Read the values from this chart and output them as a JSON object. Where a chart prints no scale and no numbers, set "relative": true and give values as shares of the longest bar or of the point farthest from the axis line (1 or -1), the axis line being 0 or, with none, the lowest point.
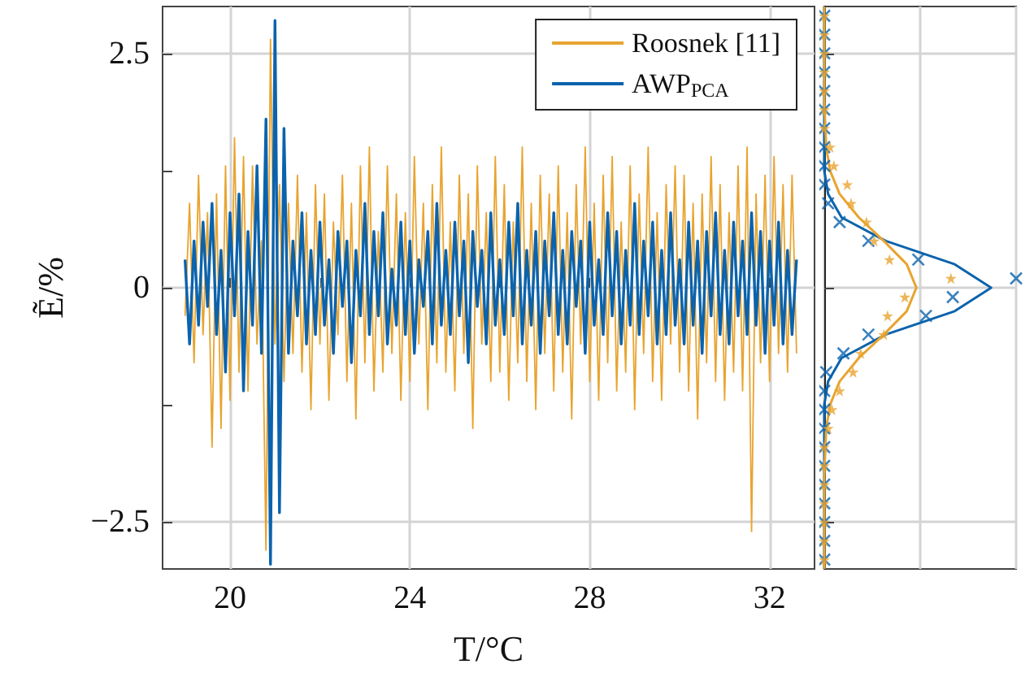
{
  "chart_data": [
    {
      "type": "line",
      "xlabel": "T/°C",
      "ylabel": "Ẽ/%",
      "xlim": [
        18.5,
        33
      ],
      "ylim": [
        -3,
        3
      ],
      "xticks": [
        20,
        {
          "value": 22,
          "label": null
        },
        24,
        {
          "value": 26,
          "label": null
        },
        28,
        {
          "value": 30,
          "label": null
        },
        32
      ],
      "yticks": [
        {
          "value": -2.5,
          "label": "−2.5"
        },
        {
          "value": -1.25,
          "label": null
        },
        0,
        {
          "value": 1.25,
          "label": null
        },
        2.5
      ],
      "grid": true,
      "legend": "top right",
      "x": [
        19.0,
        19.1,
        19.2,
        19.3,
        19.4,
        19.5,
        19.6,
        19.7,
        19.8,
        19.9,
        20.0,
        20.1,
        20.2,
        20.3,
        20.4,
        20.5,
        20.6,
        20.7,
        20.8,
        20.9,
        21.0,
        21.1,
        21.2,
        21.3,
        21.4,
        21.5,
        21.6,
        21.7,
        21.8,
        21.9,
        22.0,
        22.1,
        22.2,
        22.3,
        22.4,
        22.5,
        22.6,
        22.7,
        22.8,
        22.9,
        23.0,
        23.1,
        23.2,
        23.3,
        23.4,
        23.5,
        23.6,
        23.7,
        23.8,
        23.9,
        24.0,
        24.1,
        24.2,
        24.3,
        24.4,
        24.5,
        24.6,
        24.7,
        24.8,
        24.9,
        25.0,
        25.1,
        25.2,
        25.3,
        25.4,
        25.5,
        25.6,
        25.7,
        25.8,
        25.9,
        26.0,
        26.1,
        26.2,
        26.3,
        26.4,
        26.5,
        26.6,
        26.7,
        26.8,
        26.9,
        27.0,
        27.1,
        27.2,
        27.3,
        27.4,
        27.5,
        27.6,
        27.7,
        27.8,
        27.9,
        28.0,
        28.1,
        28.2,
        28.3,
        28.4,
        28.5,
        28.6,
        28.7,
        28.8,
        28.9,
        29.0,
        29.1,
        29.2,
        29.3,
        29.4,
        29.5,
        29.6,
        29.7,
        29.8,
        29.9,
        30.0,
        30.1,
        30.2,
        30.3,
        30.4,
        30.5,
        30.6,
        30.7,
        30.8,
        30.9,
        31.0,
        31.1,
        31.2,
        31.3,
        31.4,
        31.5,
        31.6,
        31.7,
        31.8,
        31.9,
        32.0,
        32.1,
        32.2,
        32.3,
        32.4,
        32.5,
        32.6
      ],
      "series": [
        {
          "name": "Roosnek [11]",
          "color": "#e8a430",
          "values": [
            -0.3,
            0.9,
            -0.8,
            1.2,
            -0.5,
            0.8,
            -1.7,
            1.0,
            -1.5,
            1.3,
            -1.2,
            1.6,
            -0.9,
            1.4,
            -1.1,
            1.3,
            -0.6,
            0.5,
            -2.8,
            2.65,
            -0.6,
            1.1,
            -1.0,
            0.9,
            -0.7,
            1.2,
            -0.9,
            0.8,
            -1.3,
            1.1,
            -0.6,
            1.0,
            -1.2,
            0.7,
            -0.5,
            1.2,
            -1.0,
            0.9,
            -1.4,
            1.3,
            -0.8,
            1.5,
            -1.1,
            0.6,
            -0.9,
            1.3,
            -0.7,
            1.0,
            -1.2,
            0.8,
            -1.0,
            1.4,
            -0.6,
            0.9,
            -1.3,
            1.1,
            -0.8,
            1.5,
            -0.9,
            0.7,
            -1.1,
            1.2,
            -0.7,
            1.0,
            -1.5,
            1.3,
            -0.6,
            0.8,
            -1.0,
            1.4,
            -0.9,
            1.1,
            -1.2,
            0.7,
            -0.8,
            1.5,
            -1.0,
            0.9,
            -1.3,
            1.2,
            -0.7,
            1.0,
            -1.1,
            1.3,
            -0.9,
            0.8,
            -1.4,
            1.1,
            -0.6,
            1.5,
            -1.0,
            0.9,
            -1.2,
            1.2,
            -0.8,
            1.4,
            -1.1,
            0.7,
            -0.9,
            1.3,
            -1.3,
            1.0,
            -0.7,
            1.5,
            -1.0,
            0.8,
            -1.2,
            1.1,
            -0.6,
            1.3,
            -0.9,
            1.2,
            -1.1,
            0.9,
            -1.4,
            1.0,
            -0.8,
            1.4,
            -1.0,
            1.1,
            -1.2,
            0.8,
            -0.9,
            1.3,
            -1.1,
            1.5,
            -2.6,
            1.0,
            -0.8,
            1.2,
            -1.0,
            1.4,
            -0.7,
            1.1,
            -0.9,
            1.2,
            -0.7
          ]
        },
        {
          "name": "AWP$_{PCA}$",
          "color": "#0b63ad",
          "values": [
            0.3,
            -0.6,
            0.5,
            -0.4,
            0.7,
            -0.2,
            0.9,
            -0.5,
            0.4,
            -0.9,
            0.8,
            -0.3,
            1.0,
            -1.1,
            0.6,
            -0.4,
            1.3,
            -0.7,
            1.8,
            -2.95,
            2.85,
            -2.4,
            1.7,
            -0.7,
            0.5,
            -0.3,
            0.8,
            -0.6,
            0.4,
            -0.5,
            0.7,
            -0.4,
            0.3,
            -0.7,
            0.6,
            -0.2,
            0.5,
            -0.8,
            0.4,
            -0.3,
            0.9,
            -0.5,
            0.6,
            -0.3,
            0.8,
            -0.6,
            0.2,
            -0.4,
            0.7,
            -0.5,
            0.5,
            -0.7,
            0.3,
            -0.2,
            0.6,
            -0.6,
            0.9,
            -0.4,
            0.4,
            -0.5,
            0.7,
            -0.3,
            0.5,
            -0.8,
            0.6,
            -0.2,
            0.4,
            -0.6,
            0.8,
            -0.4,
            0.3,
            -0.5,
            0.7,
            -0.3,
            0.9,
            -0.6,
            0.4,
            -0.4,
            0.6,
            -0.7,
            0.5,
            -0.3,
            0.8,
            -0.5,
            0.4,
            -0.6,
            0.6,
            -0.2,
            0.5,
            -0.7,
            0.7,
            -0.4,
            0.3,
            -0.5,
            0.8,
            -0.3,
            0.6,
            -0.6,
            0.4,
            -0.4,
            0.9,
            -0.5,
            0.5,
            -0.3,
            0.7,
            -0.6,
            0.4,
            -0.5,
            0.8,
            -0.4,
            0.3,
            -0.6,
            0.7,
            -0.4,
            0.5,
            -0.7,
            0.6,
            -0.3,
            0.8,
            -0.5,
            0.4,
            -0.6,
            0.7,
            -0.3,
            0.5,
            -0.5,
            0.8,
            -0.4,
            0.6,
            -0.7,
            0.5,
            -0.4,
            0.7,
            -0.6,
            0.4,
            -0.5,
            0.3
          ]
        }
      ]
    },
    {
      "type": "scatter",
      "relative": true,
      "orientation": "horizontal",
      "ylim": [
        -3,
        3
      ],
      "yticks": [
        -2.5,
        0,
        2.5
      ],
      "tick_labels": false,
      "grid": true,
      "series": [
        {
          "type": "scatter",
          "marker": "cross",
          "color": "#0b63ad",
          "x": [
            -2.9,
            -2.7,
            -2.5,
            -2.3,
            -2.1,
            -1.9,
            -1.7,
            -1.5,
            -1.3,
            -1.1,
            -0.9,
            -0.7,
            -0.5,
            -0.3,
            -0.1,
            0.1,
            0.3,
            0.5,
            0.7,
            0.9,
            1.1,
            1.3,
            1.5,
            1.7,
            1.9,
            2.1,
            2.3,
            2.5,
            2.7,
            2.9
          ],
          "values": [
            0,
            0,
            0,
            0,
            0,
            0,
            0,
            0,
            0,
            0,
            0.01,
            0.1,
            0.23,
            0.53,
            0.67,
            1,
            0.49,
            0.23,
            0.08,
            0.02,
            0,
            0,
            0,
            0,
            0,
            0,
            0,
            0,
            0,
            0
          ]
        },
        {
          "type": "scatter",
          "marker": "star",
          "color": "#e8a430",
          "x": [
            -2.9,
            -2.7,
            -2.5,
            -2.3,
            -2.1,
            -1.9,
            -1.7,
            -1.5,
            -1.3,
            -1.1,
            -0.9,
            -0.7,
            -0.5,
            -0.3,
            -0.1,
            0.1,
            0.3,
            0.5,
            0.7,
            0.9,
            1.1,
            1.3,
            1.5,
            1.7,
            1.9,
            2.1,
            2.3,
            2.5,
            2.7,
            2.9
          ],
          "values": [
            0,
            0,
            0,
            0,
            0,
            0,
            0,
            0.02,
            0.04,
            0.08,
            0.15,
            0.19,
            0.31,
            0.33,
            0.42,
            0.66,
            0.34,
            0.26,
            0.22,
            0.14,
            0.12,
            0.05,
            0.03,
            0,
            0,
            0,
            0,
            0,
            0,
            0
          ]
        },
        {
          "type": "line",
          "color": "#0b63ad",
          "x": [
            -3,
            -2,
            -1.5,
            -1.25,
            -1,
            -0.75,
            -0.5,
            -0.25,
            0,
            0.25,
            0.5,
            0.75,
            1,
            1.25,
            1.5,
            2,
            3
          ],
          "values": [
            0,
            0,
            0,
            0,
            0.02,
            0.09,
            0.32,
            0.68,
            0.87,
            0.68,
            0.32,
            0.09,
            0.02,
            0,
            0,
            0,
            0
          ]
        },
        {
          "type": "line",
          "color": "#e8a430",
          "x": [
            -3,
            -2,
            -1.5,
            -1.25,
            -1,
            -0.75,
            -0.5,
            -0.25,
            0,
            0.25,
            0.5,
            0.75,
            1,
            1.25,
            1.5,
            2,
            3
          ],
          "values": [
            0,
            0,
            0.01,
            0.03,
            0.08,
            0.18,
            0.31,
            0.43,
            0.48,
            0.43,
            0.31,
            0.18,
            0.08,
            0.03,
            0.01,
            0,
            0
          ]
        }
      ]
    }
  ]
}
